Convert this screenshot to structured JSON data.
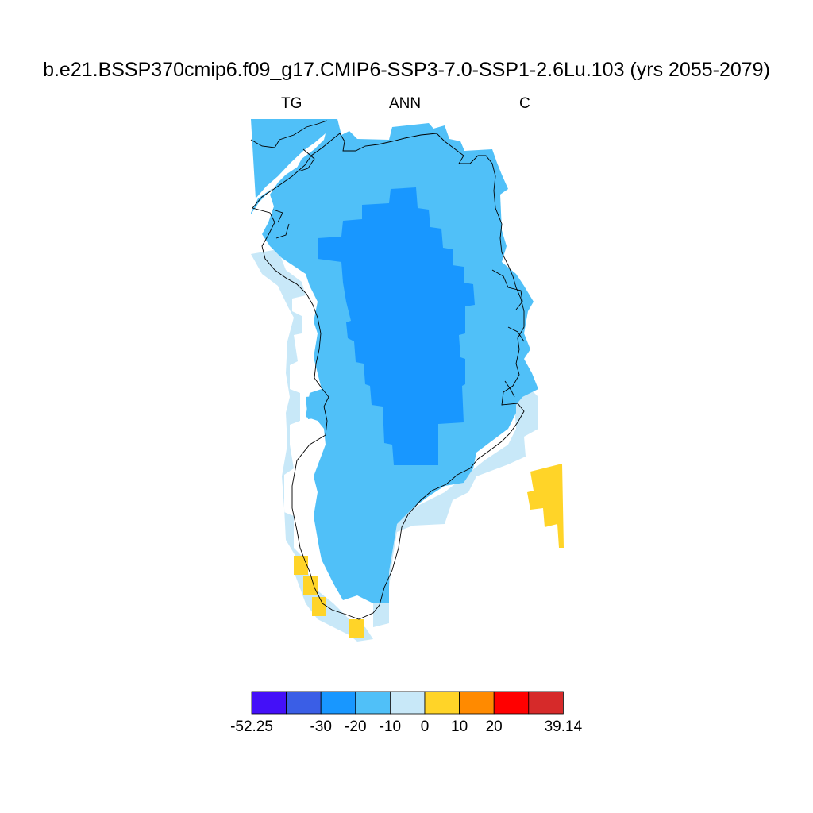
{
  "title": "b.e21.BSSP370cmip6.f09_g17.CMIP6-SSP3-7.0-SSP1-2.6Lu.103 (yrs 2055-2079)",
  "subtitles": {
    "left": "TG",
    "center": "ANN",
    "right": "C"
  },
  "colorbar": {
    "colors": [
      "#4410f8",
      "#3a5ee6",
      "#1897ff",
      "#50c0f8",
      "#c8e8f8",
      "#ffd428",
      "#ff8a00",
      "#ff0000",
      "#d62a2a"
    ],
    "labels": [
      "-52.25",
      "-30",
      "-20",
      "-10",
      "0",
      "10",
      "20",
      "39.14"
    ]
  },
  "regions": [
    {
      "name": "ocean-buffer-band",
      "value_range": "0 to -10",
      "color": "#c8e8f8"
    },
    {
      "name": "coastal-band",
      "value_range": "-10 to -20",
      "color": "#50c0f8"
    },
    {
      "name": "interior-ice-sheet",
      "value_range": "-20 to -30",
      "color": "#1897ff"
    },
    {
      "name": "warm-anomaly-patches",
      "value_range": "0 to 10",
      "color": "#ffd428"
    }
  ]
}
